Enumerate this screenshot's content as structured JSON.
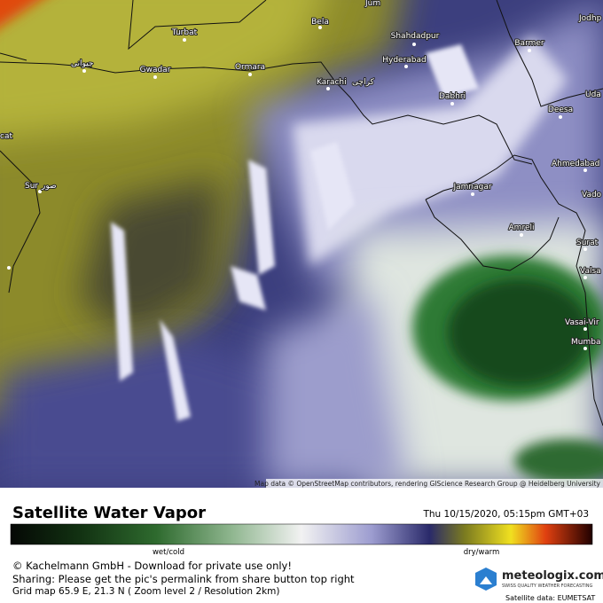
{
  "map": {
    "labels": [
      "Turbat",
      "Bela",
      "Shahdadpur",
      "Barmer",
      "Jodhp",
      "Jum",
      "Hyderabad",
      "Gwadar",
      "Ormara",
      "Karachi",
      "کراچی",
      "Dabhri",
      "Deesa",
      "Uda",
      "Ahmedabad",
      "Jamnagar",
      "Vado",
      "Amreli",
      "Surat",
      "Valsa",
      "Vasai-Vir",
      "Mumba",
      "cat",
      "Sur",
      "صور",
      "جیوانی"
    ],
    "attribution": "Map data © OpenStreetMap contributors, rendering GIScience Research Group @ Heidelberg University"
  },
  "legend": {
    "title": "Satellite Water Vapor",
    "timestamp": "Thu 10/15/2020, 05:15pm GMT+03",
    "low_label": "wet/cold",
    "high_label": "dry/warm"
  },
  "footer": {
    "copyright": "© Kachelmann GmbH - Download for private use only!",
    "sharing": "Sharing: Please get the pic's permalink from share button top right",
    "grid_info": "Grid map 65.9 E, 21.3 N ( Zoom level 2 / Resolution 2km)",
    "brand": "meteologix.com",
    "tagline": "SWISS QUALITY WEATHER FORECASTING",
    "source": "Satellite data: EUMETSAT"
  }
}
